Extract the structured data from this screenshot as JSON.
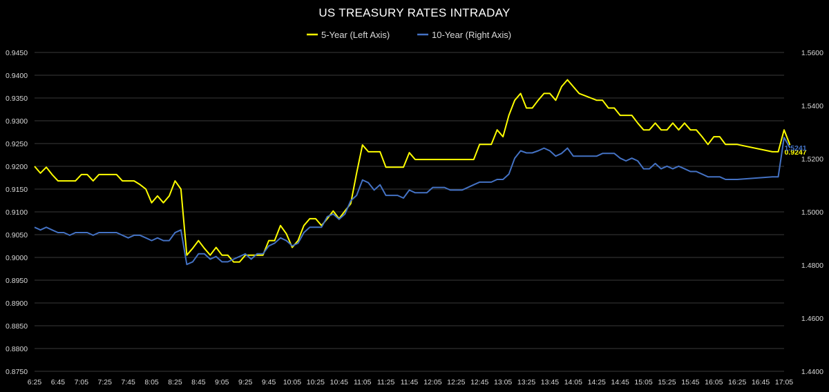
{
  "chart_data": {
    "type": "line",
    "title": "US TREASURY RATES INTRADAY",
    "legend_position": "top",
    "grid": true,
    "x_ticks": [
      "6:25",
      "6:45",
      "7:05",
      "7:25",
      "7:45",
      "8:05",
      "8:25",
      "8:45",
      "9:05",
      "9:25",
      "9:45",
      "10:05",
      "10:25",
      "10:45",
      "11:05",
      "11:25",
      "11:45",
      "12:05",
      "12:25",
      "12:45",
      "13:05",
      "13:25",
      "13:45",
      "14:05",
      "14:25",
      "14:45",
      "15:05",
      "15:25",
      "15:45",
      "16:05",
      "16:25",
      "16:45",
      "17:05"
    ],
    "y_left": {
      "ticks": [
        "0.9450",
        "0.9400",
        "0.9350",
        "0.9300",
        "0.9250",
        "0.9200",
        "0.9150",
        "0.9100",
        "0.9050",
        "0.9000",
        "0.8950",
        "0.8900",
        "0.8850",
        "0.8800",
        "0.8750"
      ],
      "min": 0.875,
      "max": 0.945
    },
    "y_right": {
      "ticks": [
        "1.5600",
        "1.5400",
        "1.5200",
        "1.5000",
        "1.4800",
        "1.4600",
        "1.4400"
      ],
      "min": 1.44,
      "max": 1.56
    },
    "series": [
      {
        "name": "5-Year (Left Axis)",
        "axis": "left",
        "color": "#ffff00",
        "last_label": "0.9247",
        "points": [
          [
            "6:25",
            0.92
          ],
          [
            "6:30",
            0.9185
          ],
          [
            "6:35",
            0.9198
          ],
          [
            "6:40",
            0.9182
          ],
          [
            "6:45",
            0.9168
          ],
          [
            "6:50",
            0.9168
          ],
          [
            "6:55",
            0.9168
          ],
          [
            "7:00",
            0.9168
          ],
          [
            "7:05",
            0.9182
          ],
          [
            "7:10",
            0.9182
          ],
          [
            "7:15",
            0.9168
          ],
          [
            "7:20",
            0.9182
          ],
          [
            "7:25",
            0.9182
          ],
          [
            "7:30",
            0.9182
          ],
          [
            "7:35",
            0.9182
          ],
          [
            "7:40",
            0.9168
          ],
          [
            "7:45",
            0.9168
          ],
          [
            "7:50",
            0.9168
          ],
          [
            "7:55",
            0.916
          ],
          [
            "8:00",
            0.915
          ],
          [
            "8:05",
            0.912
          ],
          [
            "8:10",
            0.9135
          ],
          [
            "8:15",
            0.912
          ],
          [
            "8:20",
            0.9135
          ],
          [
            "8:25",
            0.9168
          ],
          [
            "8:30",
            0.915
          ],
          [
            "8:35",
            0.9005
          ],
          [
            "8:40",
            0.902
          ],
          [
            "8:45",
            0.9037
          ],
          [
            "8:50",
            0.902
          ],
          [
            "8:55",
            0.9005
          ],
          [
            "9:00",
            0.9022
          ],
          [
            "9:05",
            0.9005
          ],
          [
            "9:10",
            0.9005
          ],
          [
            "9:15",
            0.899
          ],
          [
            "9:20",
            0.899
          ],
          [
            "9:25",
            0.9005
          ],
          [
            "9:30",
            0.9005
          ],
          [
            "9:35",
            0.9005
          ],
          [
            "9:40",
            0.9005
          ],
          [
            "9:45",
            0.9037
          ],
          [
            "9:50",
            0.9037
          ],
          [
            "9:55",
            0.907
          ],
          [
            "10:00",
            0.9052
          ],
          [
            "10:05",
            0.9022
          ],
          [
            "10:10",
            0.9037
          ],
          [
            "10:15",
            0.907
          ],
          [
            "10:20",
            0.9085
          ],
          [
            "10:25",
            0.9085
          ],
          [
            "10:30",
            0.907
          ],
          [
            "10:35",
            0.9085
          ],
          [
            "10:40",
            0.9102
          ],
          [
            "10:45",
            0.9085
          ],
          [
            "10:50",
            0.9102
          ],
          [
            "10:55",
            0.9118
          ],
          [
            "11:00",
            0.9185
          ],
          [
            "11:05",
            0.9247
          ],
          [
            "11:10",
            0.9232
          ],
          [
            "11:15",
            0.9232
          ],
          [
            "11:20",
            0.9232
          ],
          [
            "11:25",
            0.9198
          ],
          [
            "11:30",
            0.9198
          ],
          [
            "11:35",
            0.9198
          ],
          [
            "11:40",
            0.9198
          ],
          [
            "11:45",
            0.923
          ],
          [
            "11:50",
            0.9215
          ],
          [
            "11:55",
            0.9215
          ],
          [
            "12:00",
            0.9215
          ],
          [
            "12:05",
            0.9215
          ],
          [
            "12:10",
            0.9215
          ],
          [
            "12:15",
            0.9215
          ],
          [
            "12:20",
            0.9215
          ],
          [
            "12:25",
            0.9215
          ],
          [
            "12:30",
            0.9215
          ],
          [
            "12:35",
            0.9215
          ],
          [
            "12:40",
            0.9215
          ],
          [
            "12:45",
            0.9248
          ],
          [
            "12:50",
            0.9248
          ],
          [
            "12:55",
            0.9248
          ],
          [
            "13:00",
            0.928
          ],
          [
            "13:05",
            0.9265
          ],
          [
            "13:10",
            0.9312
          ],
          [
            "13:15",
            0.9345
          ],
          [
            "13:20",
            0.936
          ],
          [
            "13:25",
            0.9328
          ],
          [
            "13:30",
            0.9328
          ],
          [
            "13:35",
            0.9345
          ],
          [
            "13:40",
            0.936
          ],
          [
            "13:45",
            0.936
          ],
          [
            "13:50",
            0.9345
          ],
          [
            "13:55",
            0.9375
          ],
          [
            "14:00",
            0.939
          ],
          [
            "14:05",
            0.9375
          ],
          [
            "14:10",
            0.936
          ],
          [
            "14:15",
            0.9355
          ],
          [
            "14:20",
            0.935
          ],
          [
            "14:25",
            0.9345
          ],
          [
            "14:30",
            0.9345
          ],
          [
            "14:35",
            0.9328
          ],
          [
            "14:40",
            0.9328
          ],
          [
            "14:45",
            0.9312
          ],
          [
            "14:50",
            0.9312
          ],
          [
            "14:55",
            0.9312
          ],
          [
            "15:00",
            0.9295
          ],
          [
            "15:05",
            0.928
          ],
          [
            "15:10",
            0.928
          ],
          [
            "15:15",
            0.9295
          ],
          [
            "15:20",
            0.928
          ],
          [
            "15:25",
            0.928
          ],
          [
            "15:30",
            0.9295
          ],
          [
            "15:35",
            0.928
          ],
          [
            "15:40",
            0.9295
          ],
          [
            "15:45",
            0.928
          ],
          [
            "15:50",
            0.928
          ],
          [
            "15:55",
            0.9265
          ],
          [
            "16:00",
            0.9248
          ],
          [
            "16:05",
            0.9265
          ],
          [
            "16:10",
            0.9265
          ],
          [
            "16:15",
            0.9248
          ],
          [
            "16:20",
            0.9248
          ],
          [
            "16:25",
            0.9248
          ],
          [
            "16:55",
            0.9232
          ],
          [
            "17:00",
            0.9232
          ],
          [
            "17:05",
            0.928
          ],
          [
            "17:10",
            0.9247
          ]
        ]
      },
      {
        "name": "10-Year (Right Axis)",
        "axis": "right",
        "color": "#4472c4",
        "last_label": "1.5241",
        "points": [
          [
            "6:25",
            1.4942
          ],
          [
            "6:30",
            1.4932
          ],
          [
            "6:35",
            1.4942
          ],
          [
            "6:40",
            1.4932
          ],
          [
            "6:45",
            1.4922
          ],
          [
            "6:50",
            1.4922
          ],
          [
            "6:55",
            1.4912
          ],
          [
            "7:00",
            1.4922
          ],
          [
            "7:05",
            1.4922
          ],
          [
            "7:10",
            1.4922
          ],
          [
            "7:15",
            1.4912
          ],
          [
            "7:20",
            1.4922
          ],
          [
            "7:25",
            1.4922
          ],
          [
            "7:30",
            1.4922
          ],
          [
            "7:35",
            1.4922
          ],
          [
            "7:40",
            1.4912
          ],
          [
            "7:45",
            1.4902
          ],
          [
            "7:50",
            1.4912
          ],
          [
            "7:55",
            1.4912
          ],
          [
            "8:00",
            1.4902
          ],
          [
            "8:05",
            1.4892
          ],
          [
            "8:10",
            1.4902
          ],
          [
            "8:15",
            1.4892
          ],
          [
            "8:20",
            1.4892
          ],
          [
            "8:25",
            1.4922
          ],
          [
            "8:30",
            1.4932
          ],
          [
            "8:35",
            1.4802
          ],
          [
            "8:40",
            1.4812
          ],
          [
            "8:45",
            1.4842
          ],
          [
            "8:50",
            1.4842
          ],
          [
            "8:55",
            1.4822
          ],
          [
            "9:00",
            1.4832
          ],
          [
            "9:05",
            1.4812
          ],
          [
            "9:10",
            1.4812
          ],
          [
            "9:15",
            1.4822
          ],
          [
            "9:20",
            1.4832
          ],
          [
            "9:25",
            1.4842
          ],
          [
            "9:30",
            1.4822
          ],
          [
            "9:35",
            1.4842
          ],
          [
            "9:40",
            1.4842
          ],
          [
            "9:45",
            1.4872
          ],
          [
            "9:50",
            1.4882
          ],
          [
            "9:55",
            1.4902
          ],
          [
            "10:00",
            1.4892
          ],
          [
            "10:05",
            1.4872
          ],
          [
            "10:10",
            1.4882
          ],
          [
            "10:15",
            1.4922
          ],
          [
            "10:20",
            1.4942
          ],
          [
            "10:25",
            1.4942
          ],
          [
            "10:30",
            1.4942
          ],
          [
            "10:35",
            1.4982
          ],
          [
            "10:40",
            1.4992
          ],
          [
            "10:45",
            1.4972
          ],
          [
            "10:50",
            1.4992
          ],
          [
            "10:55",
            1.5042
          ],
          [
            "11:00",
            1.5062
          ],
          [
            "11:05",
            1.512
          ],
          [
            "11:10",
            1.511
          ],
          [
            "11:15",
            1.5082
          ],
          [
            "11:20",
            1.5102
          ],
          [
            "11:25",
            1.5062
          ],
          [
            "11:30",
            1.5062
          ],
          [
            "11:35",
            1.5062
          ],
          [
            "11:40",
            1.5052
          ],
          [
            "11:45",
            1.5082
          ],
          [
            "11:50",
            1.5072
          ],
          [
            "11:55",
            1.5072
          ],
          [
            "12:00",
            1.5072
          ],
          [
            "12:05",
            1.5092
          ],
          [
            "12:10",
            1.5092
          ],
          [
            "12:15",
            1.5092
          ],
          [
            "12:20",
            1.5082
          ],
          [
            "12:25",
            1.5082
          ],
          [
            "12:30",
            1.5082
          ],
          [
            "12:35",
            1.5092
          ],
          [
            "12:40",
            1.5102
          ],
          [
            "12:45",
            1.5112
          ],
          [
            "12:50",
            1.5112
          ],
          [
            "12:55",
            1.5112
          ],
          [
            "13:00",
            1.5122
          ],
          [
            "13:05",
            1.5122
          ],
          [
            "13:10",
            1.5142
          ],
          [
            "13:15",
            1.5202
          ],
          [
            "13:20",
            1.523
          ],
          [
            "13:25",
            1.5222
          ],
          [
            "13:30",
            1.5222
          ],
          [
            "13:35",
            1.523
          ],
          [
            "13:40",
            1.524
          ],
          [
            "13:45",
            1.523
          ],
          [
            "13:50",
            1.521
          ],
          [
            "13:55",
            1.522
          ],
          [
            "14:00",
            1.524
          ],
          [
            "14:05",
            1.521
          ],
          [
            "14:10",
            1.521
          ],
          [
            "14:15",
            1.521
          ],
          [
            "14:20",
            1.521
          ],
          [
            "14:25",
            1.521
          ],
          [
            "14:30",
            1.522
          ],
          [
            "14:35",
            1.522
          ],
          [
            "14:40",
            1.522
          ],
          [
            "14:45",
            1.5202
          ],
          [
            "14:50",
            1.5192
          ],
          [
            "14:55",
            1.5202
          ],
          [
            "15:00",
            1.5192
          ],
          [
            "15:05",
            1.5162
          ],
          [
            "15:10",
            1.5162
          ],
          [
            "15:15",
            1.5182
          ],
          [
            "15:20",
            1.5162
          ],
          [
            "15:25",
            1.5172
          ],
          [
            "15:30",
            1.5162
          ],
          [
            "15:35",
            1.5172
          ],
          [
            "15:40",
            1.5162
          ],
          [
            "15:45",
            1.5152
          ],
          [
            "15:50",
            1.5152
          ],
          [
            "15:55",
            1.5142
          ],
          [
            "16:00",
            1.5132
          ],
          [
            "16:05",
            1.5132
          ],
          [
            "16:10",
            1.5132
          ],
          [
            "16:15",
            1.5122
          ],
          [
            "16:20",
            1.5122
          ],
          [
            "16:25",
            1.5122
          ],
          [
            "16:55",
            1.5132
          ],
          [
            "17:00",
            1.5132
          ],
          [
            "17:05",
            1.528
          ],
          [
            "17:10",
            1.5241
          ]
        ]
      }
    ]
  }
}
